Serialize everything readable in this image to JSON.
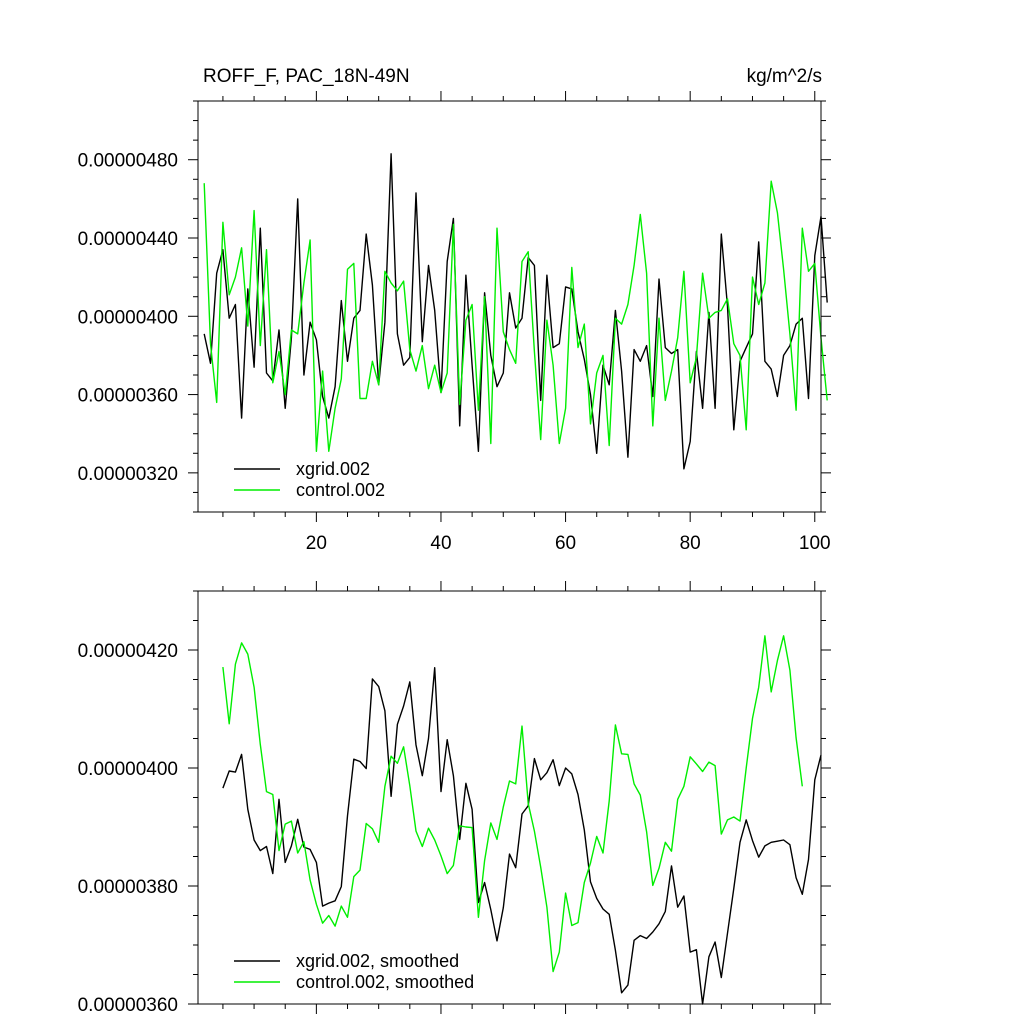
{
  "figure": {
    "title_left": "ROFF_F, PAC_18N-49N",
    "title_right": "kg/m^2/s"
  },
  "chart_data": [
    {
      "type": "line",
      "title": "ROFF_F, PAC_18N-49N",
      "units": "kg/m^2/s",
      "xlabel": "",
      "ylabel": "",
      "xlim": [
        1,
        101
      ],
      "ylim": [
        3e-06,
        5.1e-06
      ],
      "x_ticks": [
        20,
        40,
        60,
        80,
        100
      ],
      "x_tick_labels": [
        "20",
        "40",
        "60",
        "80",
        "100"
      ],
      "y_ticks": [
        3.2e-06,
        3.6e-06,
        4e-06,
        4.4e-06,
        4.8e-06
      ],
      "y_tick_labels": [
        "0.00000320",
        "0.00000360",
        "0.00000400",
        "0.00000440",
        "0.00000480"
      ],
      "x_start": 2,
      "legend_position": "bottom-left",
      "series": [
        {
          "name": "xgrid.002",
          "color": "#000000",
          "values": [
            3.91,
            3.76,
            4.22,
            4.34,
            3.99,
            4.06,
            3.48,
            4.14,
            3.74,
            4.45,
            3.71,
            3.67,
            3.93,
            3.53,
            3.89,
            4.6,
            3.7,
            3.97,
            3.88,
            3.59,
            3.48,
            3.64,
            4.08,
            3.77,
            3.99,
            4.03,
            4.42,
            4.16,
            3.65,
            3.97,
            4.83,
            3.91,
            3.75,
            3.79,
            4.63,
            3.87,
            4.26,
            4.03,
            3.61,
            4.28,
            4.5,
            3.44,
            4.21,
            3.75,
            3.31,
            4.12,
            3.8,
            3.64,
            3.71,
            4.12,
            3.94,
            3.99,
            4.3,
            4.26,
            3.57,
            4.21,
            3.84,
            3.86,
            4.15,
            4.14,
            3.92,
            3.78,
            3.6,
            3.3,
            3.75,
            3.65,
            4.03,
            3.72,
            3.28,
            3.83,
            3.77,
            3.85,
            3.59,
            4.19,
            3.84,
            3.81,
            3.83,
            3.22,
            3.36,
            3.82,
            3.53,
            4.02,
            3.53,
            4.42,
            4.05,
            3.42,
            3.77,
            3.84,
            3.91,
            4.38,
            3.77,
            3.73,
            3.59,
            3.8,
            3.85,
            3.96,
            3.99,
            3.58,
            4.31,
            4.51,
            4.07
          ],
          "unit_scale": 1e-06
        },
        {
          "name": "control.002",
          "color": "#00ee00",
          "values": [
            4.68,
            3.86,
            3.56,
            4.48,
            4.11,
            4.2,
            4.35,
            3.95,
            4.54,
            3.85,
            4.34,
            3.66,
            3.82,
            3.6,
            3.93,
            3.91,
            4.17,
            4.39,
            3.31,
            3.72,
            3.31,
            3.53,
            3.68,
            4.24,
            4.27,
            3.58,
            3.58,
            3.77,
            3.65,
            4.23,
            4.17,
            4.13,
            4.18,
            3.83,
            3.72,
            3.85,
            3.63,
            3.75,
            3.61,
            3.71,
            4.47,
            3.55,
            3.98,
            4.06,
            3.52,
            4.1,
            3.35,
            4.45,
            3.92,
            3.83,
            3.76,
            4.28,
            4.33,
            3.82,
            3.37,
            3.98,
            3.75,
            3.35,
            3.53,
            4.25,
            3.84,
            3.96,
            3.45,
            3.71,
            3.8,
            3.34,
            3.99,
            3.96,
            4.06,
            4.26,
            4.52,
            4.22,
            3.44,
            3.99,
            3.57,
            3.72,
            3.89,
            4.23,
            3.66,
            3.79,
            4.22,
            3.99,
            4.02,
            4.03,
            4.09,
            3.86,
            3.8,
            3.42,
            4.2,
            4.06,
            4.17,
            4.69,
            4.53,
            4.24,
            3.91,
            3.52,
            4.45,
            4.23,
            4.27,
            3.89,
            3.57
          ],
          "unit_scale": 1e-06
        }
      ]
    },
    {
      "type": "line",
      "title": "",
      "xlabel": "",
      "ylabel": "",
      "xlim": [
        1,
        101
      ],
      "ylim": [
        3.6e-06,
        4.3e-06
      ],
      "x_ticks": [
        20,
        40,
        60,
        80,
        100
      ],
      "x_tick_labels": [],
      "y_ticks": [
        3.6e-06,
        3.8e-06,
        4e-06,
        4.2e-06
      ],
      "y_tick_labels": [
        "0.00000360",
        "0.00000380",
        "0.00000400",
        "0.00000420"
      ],
      "x_start": 5,
      "legend_position": "bottom-left",
      "series": [
        {
          "name": "xgrid.002, smoothed",
          "color": "#000000",
          "values": [
            3.966,
            3.995,
            3.993,
            4.023,
            3.93,
            3.878,
            3.86,
            3.867,
            3.821,
            3.947,
            3.84,
            3.868,
            3.913,
            3.866,
            3.862,
            3.84,
            3.766,
            3.771,
            3.775,
            3.799,
            3.919,
            4.015,
            4.011,
            3.999,
            4.151,
            4.138,
            4.097,
            3.952,
            4.074,
            4.105,
            4.146,
            4.039,
            3.987,
            4.05,
            4.17,
            3.96,
            4.048,
            3.987,
            3.879,
            3.974,
            3.93,
            3.772,
            3.806,
            3.76,
            3.707,
            3.763,
            3.854,
            3.831,
            3.922,
            3.936,
            4.016,
            3.98,
            3.992,
            4.014,
            3.97,
            4.0,
            3.99,
            3.955,
            3.895,
            3.807,
            3.779,
            3.761,
            3.752,
            3.691,
            3.619,
            3.632,
            3.708,
            3.716,
            3.711,
            3.722,
            3.736,
            3.757,
            3.834,
            3.764,
            3.783,
            3.688,
            3.692,
            3.6,
            3.68,
            3.705,
            3.645,
            3.72,
            3.796,
            3.874,
            3.912,
            3.877,
            3.849,
            3.868,
            3.874,
            3.876,
            3.878,
            3.87,
            3.814,
            3.786,
            3.845,
            3.98,
            4.022
          ],
          "unit_scale": 1e-06
        },
        {
          "name": "control.002, smoothed",
          "color": "#00ee00",
          "values": [
            4.171,
            4.075,
            4.176,
            4.212,
            4.193,
            4.137,
            4.04,
            3.96,
            3.955,
            3.86,
            3.905,
            3.91,
            3.856,
            3.875,
            3.81,
            3.769,
            3.737,
            3.75,
            3.732,
            3.766,
            3.747,
            3.816,
            3.827,
            3.906,
            3.897,
            3.874,
            3.969,
            4.02,
            4.008,
            4.036,
            3.97,
            3.893,
            3.867,
            3.898,
            3.878,
            3.851,
            3.821,
            3.835,
            3.902,
            3.9,
            3.899,
            3.747,
            3.843,
            3.907,
            3.879,
            3.934,
            3.978,
            3.973,
            4.071,
            3.94,
            3.893,
            3.832,
            3.764,
            3.655,
            3.688,
            3.788,
            3.733,
            3.738,
            3.806,
            3.839,
            3.884,
            3.856,
            3.944,
            4.073,
            4.024,
            4.023,
            3.973,
            3.954,
            3.892,
            3.801,
            3.83,
            3.874,
            3.859,
            3.947,
            3.969,
            4.019,
            4.007,
            3.994,
            4.01,
            4.004,
            3.888,
            3.912,
            3.917,
            3.91,
            4.0,
            4.084,
            4.137,
            4.224,
            4.129,
            4.182,
            4.224,
            4.166,
            4.051,
            3.969
          ],
          "unit_scale": 1e-06
        }
      ]
    }
  ]
}
